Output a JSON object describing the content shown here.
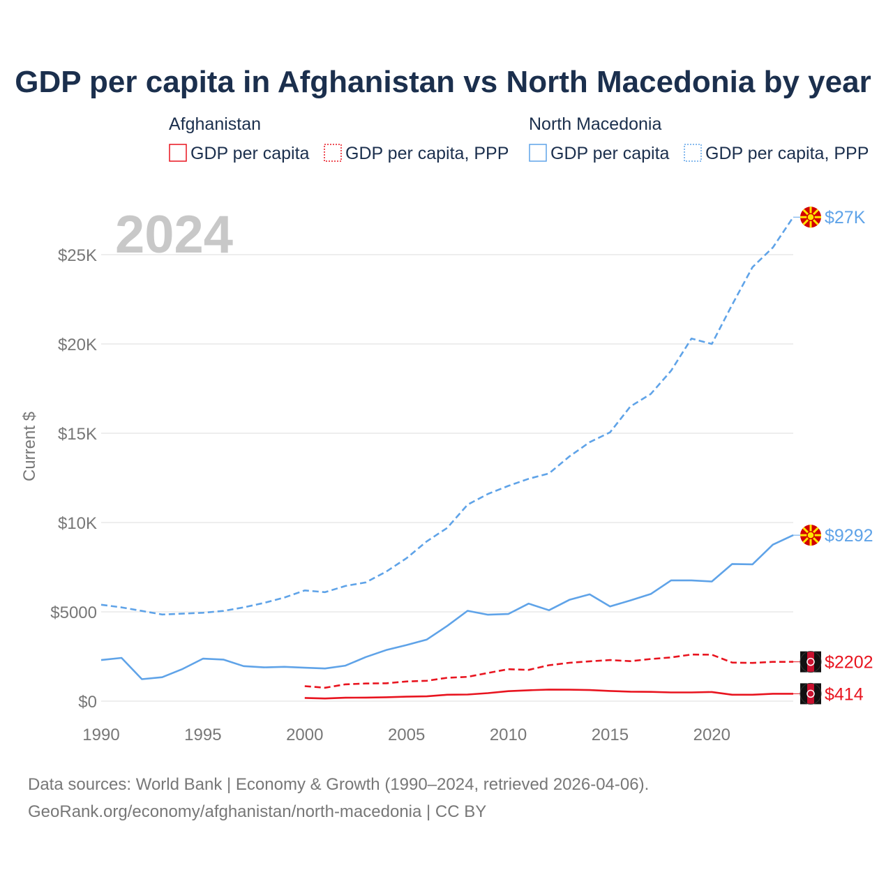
{
  "title": "GDP per capita in Afghanistan vs North Macedonia by year",
  "year_label": "2024",
  "legend": {
    "groups": [
      {
        "name": "Afghanistan",
        "color": "#e8141f",
        "items": [
          {
            "label": "GDP per capita",
            "style": "solid"
          },
          {
            "label": "GDP per capita, PPP",
            "style": "dotted"
          }
        ]
      },
      {
        "name": "North Macedonia",
        "color": "#5fa3e8",
        "items": [
          {
            "label": "GDP per capita",
            "style": "solid"
          },
          {
            "label": "GDP per capita, PPP",
            "style": "dotted"
          }
        ]
      }
    ]
  },
  "chart_data": {
    "type": "line",
    "ylabel": "Current $",
    "xlim": [
      1990,
      2024
    ],
    "ylim": [
      0,
      27000
    ],
    "x_ticks": [
      1990,
      1995,
      2000,
      2005,
      2010,
      2015,
      2020
    ],
    "y_ticks": [
      {
        "value": 0,
        "label": "$0"
      },
      {
        "value": 5000,
        "label": "$5000"
      },
      {
        "value": 10000,
        "label": "$10K"
      },
      {
        "value": 15000,
        "label": "$15K"
      },
      {
        "value": 20000,
        "label": "$20K"
      },
      {
        "value": 25000,
        "label": "$25K"
      }
    ],
    "grid": true,
    "series": [
      {
        "name": "North Macedonia GDP per capita, PPP",
        "country": "North Macedonia",
        "color": "#5fa3e8",
        "dash": "dashed",
        "end_label": "$27K",
        "x": [
          1990,
          1991,
          1992,
          1993,
          1994,
          1995,
          1996,
          1997,
          1998,
          1999,
          2000,
          2001,
          2002,
          2003,
          2004,
          2005,
          2006,
          2007,
          2008,
          2009,
          2010,
          2011,
          2012,
          2013,
          2014,
          2015,
          2016,
          2017,
          2018,
          2019,
          2020,
          2021,
          2022,
          2023,
          2024
        ],
        "values": [
          5400,
          5250,
          5050,
          4850,
          4900,
          4950,
          5050,
          5250,
          5500,
          5800,
          6200,
          6100,
          6450,
          6650,
          7250,
          8000,
          8950,
          9700,
          11000,
          11600,
          12050,
          12450,
          12750,
          13700,
          14500,
          15050,
          16500,
          17200,
          18500,
          20300,
          20000,
          22200,
          24300,
          25400,
          27100
        ]
      },
      {
        "name": "North Macedonia GDP per capita",
        "country": "North Macedonia",
        "color": "#5fa3e8",
        "dash": "solid",
        "end_label": "$9292",
        "x": [
          1990,
          1991,
          1992,
          1993,
          1994,
          1995,
          1996,
          1997,
          1998,
          1999,
          2000,
          2001,
          2002,
          2003,
          2004,
          2005,
          2006,
          2007,
          2008,
          2009,
          2010,
          2011,
          2012,
          2013,
          2014,
          2015,
          2016,
          2017,
          2018,
          2019,
          2020,
          2021,
          2022,
          2023,
          2024
        ],
        "values": [
          2300,
          2420,
          1230,
          1340,
          1800,
          2380,
          2330,
          1960,
          1890,
          1920,
          1870,
          1830,
          1990,
          2470,
          2860,
          3140,
          3450,
          4210,
          5060,
          4840,
          4880,
          5460,
          5090,
          5670,
          5980,
          5300,
          5640,
          6000,
          6760,
          6760,
          6700,
          7680,
          7660,
          8760,
          9292
        ]
      },
      {
        "name": "Afghanistan GDP per capita, PPP",
        "country": "Afghanistan",
        "color": "#e8141f",
        "dash": "dashed",
        "end_label": "$2202",
        "x": [
          2000,
          2001,
          2002,
          2003,
          2004,
          2005,
          2006,
          2007,
          2008,
          2009,
          2010,
          2011,
          2012,
          2013,
          2014,
          2015,
          2016,
          2017,
          2018,
          2019,
          2020,
          2021,
          2022,
          2023,
          2024
        ],
        "values": [
          840,
          750,
          940,
          990,
          1000,
          1100,
          1140,
          1310,
          1360,
          1580,
          1790,
          1750,
          2010,
          2150,
          2230,
          2300,
          2240,
          2360,
          2450,
          2610,
          2600,
          2160,
          2140,
          2200,
          2202
        ]
      },
      {
        "name": "Afghanistan GDP per capita",
        "country": "Afghanistan",
        "color": "#e8141f",
        "dash": "solid",
        "end_label": "$414",
        "x": [
          2000,
          2001,
          2002,
          2003,
          2004,
          2005,
          2006,
          2007,
          2008,
          2009,
          2010,
          2011,
          2012,
          2013,
          2014,
          2015,
          2016,
          2017,
          2018,
          2019,
          2020,
          2021,
          2022,
          2023,
          2024
        ],
        "values": [
          180,
          150,
          190,
          200,
          220,
          250,
          270,
          360,
          370,
          450,
          560,
          610,
          650,
          640,
          620,
          570,
          530,
          520,
          490,
          490,
          510,
          360,
          360,
          414,
          414
        ]
      }
    ]
  },
  "source": {
    "line1": "Data sources: World Bank | Economy & Growth (1990–2024, retrieved 2026-04-06).",
    "line2": "GeoRank.org/economy/afghanistan/north-macedonia | CC BY"
  }
}
